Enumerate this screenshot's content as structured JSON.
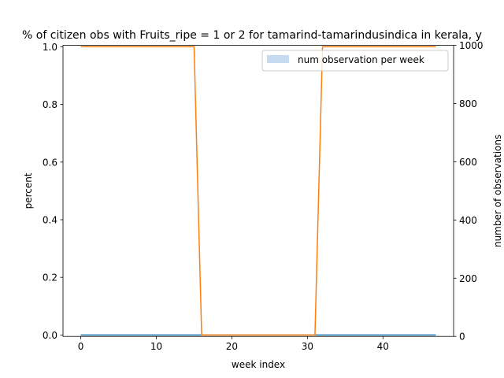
{
  "chart_data": {
    "type": "line",
    "title": "% of citizen obs with Fruits_ripe = 1 or 2 for tamarind-tamarindusindica in kerala, y",
    "xlabel": "week index",
    "ylabel": "percent",
    "y2label": "number of observations",
    "xlim": [
      -2.35,
      49.35
    ],
    "ylim": [
      -0.005,
      1.005
    ],
    "y2lim": [
      0,
      1000
    ],
    "xticks": [
      0,
      10,
      20,
      30,
      40
    ],
    "yticks": [
      0.0,
      0.2,
      0.4,
      0.6,
      0.8,
      1.0
    ],
    "y2ticks": [
      0,
      200,
      400,
      600,
      800,
      1000
    ],
    "grid": false,
    "legend_position": "upper-right",
    "x": [
      0,
      1,
      2,
      3,
      4,
      5,
      6,
      7,
      8,
      9,
      10,
      11,
      12,
      13,
      14,
      15,
      16,
      17,
      18,
      19,
      20,
      21,
      22,
      23,
      24,
      25,
      26,
      27,
      28,
      29,
      30,
      31,
      32,
      33,
      34,
      35,
      36,
      37,
      38,
      39,
      40,
      41,
      42,
      43,
      44,
      45,
      46,
      47
    ],
    "series": [
      {
        "name": "num observation per week",
        "kind": "bar",
        "axis": "right",
        "color": "#c6dbef",
        "values": [
          0,
          0,
          0,
          0,
          0,
          0,
          0,
          0,
          0,
          0,
          0,
          0,
          0,
          0,
          0,
          0,
          0,
          0,
          0,
          0,
          0,
          0,
          0,
          0,
          0,
          0,
          0,
          0,
          0,
          0,
          0,
          0,
          0,
          0,
          0,
          0,
          0,
          0,
          0,
          0,
          0,
          0,
          0,
          0,
          0,
          0,
          0,
          0
        ]
      },
      {
        "kind": "line",
        "axis": "left",
        "color": "#1f77b4",
        "values": [
          0,
          0,
          0,
          0,
          0,
          0,
          0,
          0,
          0,
          0,
          0,
          0,
          0,
          0,
          0,
          0,
          0,
          0,
          0,
          0,
          0,
          0,
          0,
          0,
          0,
          0,
          0,
          0,
          0,
          0,
          0,
          0,
          0,
          0,
          0,
          0,
          0,
          0,
          0,
          0,
          0,
          0,
          0,
          0,
          0,
          0,
          0,
          0
        ]
      },
      {
        "kind": "line",
        "axis": "left",
        "color": "#ff7f0e",
        "values": [
          1,
          1,
          1,
          1,
          1,
          1,
          1,
          1,
          1,
          1,
          1,
          1,
          1,
          1,
          1,
          1,
          0,
          0,
          0,
          0,
          0,
          0,
          0,
          0,
          0,
          0,
          0,
          0,
          0,
          0,
          0,
          0,
          1,
          1,
          1,
          1,
          1,
          1,
          1,
          1,
          1,
          1,
          1,
          1,
          1,
          1,
          1,
          1
        ]
      }
    ]
  }
}
